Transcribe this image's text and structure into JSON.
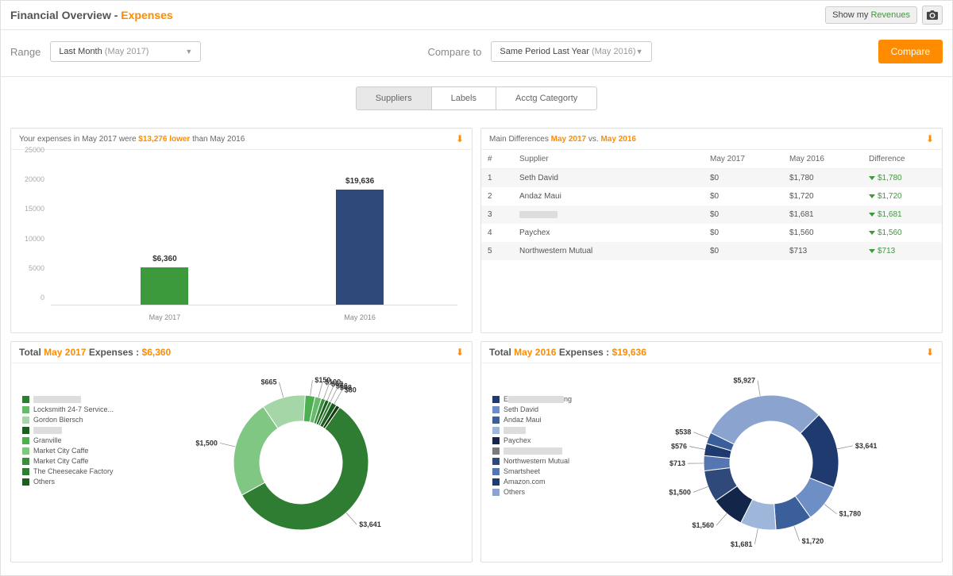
{
  "header": {
    "title_prefix": "Financial Overview - ",
    "title_accent": "Expenses",
    "show_my_prefix": "Show my ",
    "show_my_link": "Revenues"
  },
  "controls": {
    "range_label": "Range",
    "range_value": "Last Month",
    "range_sub": "(May 2017)",
    "compare_label": "Compare to",
    "compare_value": "Same Period Last Year",
    "compare_sub": "(May 2016)",
    "compare_btn": "Compare"
  },
  "tabs": {
    "suppliers": "Suppliers",
    "labels": "Labels",
    "acctg": "Acctg Categorty"
  },
  "bar_card": {
    "head_prefix": "Your expenses in May 2017 were ",
    "head_accent": "$13,276 lower",
    "head_suffix": " than May 2016",
    "ylim": [
      0,
      25000
    ],
    "ytick_step": 5000,
    "bars": [
      {
        "label": "May 2017",
        "value": 6360,
        "value_label": "$6,360",
        "color": "#3c9a3c",
        "x_pct": 28
      },
      {
        "label": "May 2016",
        "value": 19636,
        "value_label": "$19,636",
        "color": "#2f4a7a",
        "x_pct": 76
      }
    ]
  },
  "diff_card": {
    "head_prefix": "Main Differences  ",
    "p1": "May 2017",
    "vs": "  vs.  ",
    "p2": "May 2016",
    "cols": {
      "n": "#",
      "supplier": "Supplier",
      "p1": "May 2017",
      "p2": "May 2016",
      "diff": "Difference"
    },
    "rows": [
      {
        "n": "1",
        "supplier": "Seth David",
        "redacted": false,
        "p1": "$0",
        "p2": "$1,780",
        "diff": "$1,780"
      },
      {
        "n": "2",
        "supplier": "Andaz Maui",
        "redacted": false,
        "p1": "$0",
        "p2": "$1,720",
        "diff": "$1,720"
      },
      {
        "n": "3",
        "supplier": "",
        "redacted": true,
        "p1": "$0",
        "p2": "$1,681",
        "diff": "$1,681"
      },
      {
        "n": "4",
        "supplier": "Paychex",
        "redacted": false,
        "p1": "$0",
        "p2": "$1,560",
        "diff": "$1,560"
      },
      {
        "n": "5",
        "supplier": "Northwestern Mutual",
        "redacted": false,
        "p1": "$0",
        "p2": "$713",
        "diff": "$713"
      }
    ]
  },
  "donut_2017": {
    "title_prefix": "Total ",
    "title_accent": "May 2017",
    "title_mid": " Expenses : ",
    "title_val": "$6,360",
    "total": 6360,
    "legend": [
      {
        "label": "",
        "redacted": true,
        "redact_w": 60,
        "color": "#2e7d32"
      },
      {
        "label": "Locksmith 24-7 Service...",
        "color": "#66bb6a"
      },
      {
        "label": "Gordon Biersch",
        "color": "#a5d6a7"
      },
      {
        "label": "",
        "redacted": true,
        "redact_w": 36,
        "color": "#1b5e20"
      },
      {
        "label": "Granville",
        "color": "#4caf50"
      },
      {
        "label": "Market City Caffe",
        "color": "#81c784"
      },
      {
        "label": "Market City Caffe",
        "color": "#388e3c"
      },
      {
        "label": "The Cheesecake Factory",
        "color": "#2e7d32"
      },
      {
        "label": "Others",
        "color": "#1b5e20"
      }
    ],
    "slices": [
      {
        "value": 3641,
        "label": "$3,641",
        "color": "#2e7d32"
      },
      {
        "value": 1500,
        "label": "$1,500",
        "color": "#81c784"
      },
      {
        "value": 665,
        "label": "$665",
        "color": "#a5d6a7"
      },
      {
        "value": 150,
        "label": "$150",
        "color": "#4caf50"
      },
      {
        "value": 100,
        "label": "$100",
        "color": "#66bb6a"
      },
      {
        "value": 63,
        "label": "$63",
        "color": "#388e3c"
      },
      {
        "value": 56,
        "label": "$56",
        "color": "#1b5e20"
      },
      {
        "value": 48,
        "label": "$48",
        "color": "#2e7d32"
      },
      {
        "value": 80,
        "label": "$80",
        "color": "#1b5e20"
      },
      {
        "value": 57,
        "label": "",
        "color": "#133813"
      }
    ],
    "start_angle": -55
  },
  "donut_2016": {
    "title_prefix": "Total ",
    "title_accent": "May 2016",
    "title_mid": " Expenses : ",
    "title_val": "$19,636",
    "total": 19636,
    "legend": [
      {
        "label": "E",
        "redacted": true,
        "redact_w": 70,
        "suffix": "ng",
        "color": "#1f3a6e"
      },
      {
        "label": "Seth David",
        "color": "#6d8fc5"
      },
      {
        "label": "Andaz Maui",
        "color": "#3b5f9b"
      },
      {
        "label": "",
        "redacted": true,
        "redact_w": 28,
        "color": "#9fb6db"
      },
      {
        "label": "Paychex",
        "color": "#14254a"
      },
      {
        "label": "",
        "redacted": true,
        "redact_w": 74,
        "color": "#7b7b7b"
      },
      {
        "label": "Northwestern Mutual",
        "color": "#2f4a7a"
      },
      {
        "label": "Smartsheet",
        "color": "#5576b0"
      },
      {
        "label": "Amazon.com",
        "color": "#1f3a6e"
      },
      {
        "label": "Others",
        "color": "#8aa4cf"
      }
    ],
    "slices": [
      {
        "value": 3641,
        "label": "$3,641",
        "color": "#1f3a6e"
      },
      {
        "value": 1780,
        "label": "$1,780",
        "color": "#6d8fc5"
      },
      {
        "value": 1720,
        "label": "$1,720",
        "color": "#3b5f9b"
      },
      {
        "value": 1681,
        "label": "$1,681",
        "color": "#9fb6db"
      },
      {
        "value": 1560,
        "label": "$1,560",
        "color": "#14254a"
      },
      {
        "value": 1500,
        "label": "$1,500",
        "color": "#2f4a7a"
      },
      {
        "value": 713,
        "label": "$713",
        "color": "#5576b0"
      },
      {
        "value": 576,
        "label": "$576",
        "color": "#1f3a6e"
      },
      {
        "value": 538,
        "label": "$538",
        "color": "#3b5f9b"
      },
      {
        "value": 5927,
        "label": "$5,927",
        "color": "#8aa4cf"
      }
    ],
    "start_angle": -45
  }
}
